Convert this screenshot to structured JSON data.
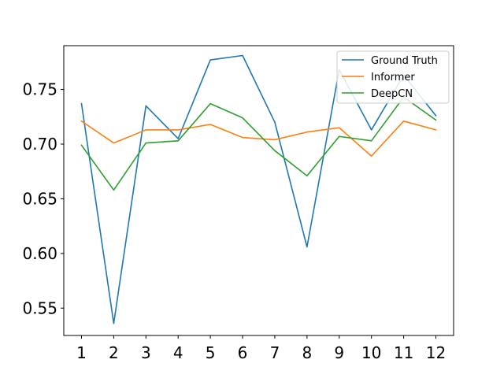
{
  "chart_data": {
    "type": "line",
    "title": "",
    "xlabel": "",
    "ylabel": "",
    "x": [
      1,
      2,
      3,
      4,
      5,
      6,
      7,
      8,
      9,
      10,
      11,
      12
    ],
    "xlim": [
      0.45,
      12.55
    ],
    "ylim": [
      0.525,
      0.79
    ],
    "yticks": [
      0.55,
      0.6,
      0.65,
      0.7,
      0.75
    ],
    "ytick_labels": [
      "0.55",
      "0.60",
      "0.65",
      "0.70",
      "0.75"
    ],
    "xtick_labels": [
      "1",
      "2",
      "3",
      "4",
      "5",
      "6",
      "7",
      "8",
      "9",
      "10",
      "11",
      "12"
    ],
    "grid": false,
    "legend": "top-right",
    "series": [
      {
        "name": "Ground Truth",
        "color": "#1f77b4",
        "values": [
          0.737,
          0.536,
          0.735,
          0.705,
          0.777,
          0.781,
          0.72,
          0.606,
          0.768,
          0.713,
          0.763,
          0.726
        ]
      },
      {
        "name": "Informer",
        "color": "#ff7f0e",
        "values": [
          0.721,
          0.701,
          0.713,
          0.713,
          0.718,
          0.706,
          0.704,
          0.711,
          0.715,
          0.689,
          0.721,
          0.713
        ]
      },
      {
        "name": "DeepCN",
        "color": "#2ca02c",
        "values": [
          0.699,
          0.658,
          0.701,
          0.703,
          0.737,
          0.724,
          0.694,
          0.671,
          0.707,
          0.703,
          0.743,
          0.722
        ]
      }
    ]
  }
}
